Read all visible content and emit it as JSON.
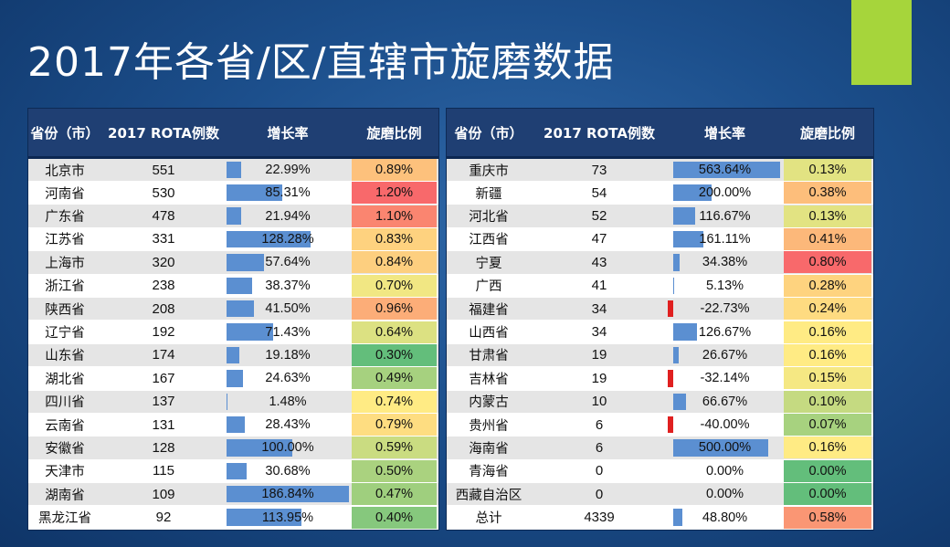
{
  "title": "2017年各省/区/直辖市旋磨数据",
  "columns": [
    "省份（市）",
    "2017 ROTA例数",
    "增长率",
    "旋磨比例"
  ],
  "colors": {
    "bar_positive": "#5b8fd1",
    "bar_negative": "#e02020",
    "ratio_low": "#63be7b",
    "ratio_mid": "#ffeb84",
    "ratio_high": "#f8696b"
  },
  "chart_data": {
    "type": "table",
    "title": "2017年各省/区/直辖市旋磨数据",
    "columns": [
      "省份（市）",
      "2017 ROTA例数",
      "增长率",
      "旋磨比例"
    ],
    "left_rows": [
      {
        "province": "北京市",
        "cases": "551",
        "growth": "22.99%",
        "growth_value": 22.99,
        "ratio": "0.89%",
        "ratio_value": 0.89
      },
      {
        "province": "河南省",
        "cases": "530",
        "growth": "85.31%",
        "growth_value": 85.31,
        "ratio": "1.20%",
        "ratio_value": 1.2
      },
      {
        "province": "广东省",
        "cases": "478",
        "growth": "21.94%",
        "growth_value": 21.94,
        "ratio": "1.10%",
        "ratio_value": 1.1
      },
      {
        "province": "江苏省",
        "cases": "331",
        "growth": "128.28%",
        "growth_value": 128.28,
        "ratio": "0.83%",
        "ratio_value": 0.83
      },
      {
        "province": "上海市",
        "cases": "320",
        "growth": "57.64%",
        "growth_value": 57.64,
        "ratio": "0.84%",
        "ratio_value": 0.84
      },
      {
        "province": "浙江省",
        "cases": "238",
        "growth": "38.37%",
        "growth_value": 38.37,
        "ratio": "0.70%",
        "ratio_value": 0.7
      },
      {
        "province": "陕西省",
        "cases": "208",
        "growth": "41.50%",
        "growth_value": 41.5,
        "ratio": "0.96%",
        "ratio_value": 0.96
      },
      {
        "province": "辽宁省",
        "cases": "192",
        "growth": "71.43%",
        "growth_value": 71.43,
        "ratio": "0.64%",
        "ratio_value": 0.64
      },
      {
        "province": "山东省",
        "cases": "174",
        "growth": "19.18%",
        "growth_value": 19.18,
        "ratio": "0.30%",
        "ratio_value": 0.3
      },
      {
        "province": "湖北省",
        "cases": "167",
        "growth": "24.63%",
        "growth_value": 24.63,
        "ratio": "0.49%",
        "ratio_value": 0.49
      },
      {
        "province": "四川省",
        "cases": "137",
        "growth": "1.48%",
        "growth_value": 1.48,
        "ratio": "0.74%",
        "ratio_value": 0.74
      },
      {
        "province": "云南省",
        "cases": "131",
        "growth": "28.43%",
        "growth_value": 28.43,
        "ratio": "0.79%",
        "ratio_value": 0.79
      },
      {
        "province": "安徽省",
        "cases": "128",
        "growth": "100.00%",
        "growth_value": 100.0,
        "ratio": "0.59%",
        "ratio_value": 0.59
      },
      {
        "province": "天津市",
        "cases": "115",
        "growth": "30.68%",
        "growth_value": 30.68,
        "ratio": "0.50%",
        "ratio_value": 0.5
      },
      {
        "province": "湖南省",
        "cases": "109",
        "growth": "186.84%",
        "growth_value": 186.84,
        "ratio": "0.47%",
        "ratio_value": 0.47
      },
      {
        "province": "黑龙江省",
        "cases": "92",
        "growth": "113.95%",
        "growth_value": 113.95,
        "ratio": "0.40%",
        "ratio_value": 0.4
      }
    ],
    "right_rows": [
      {
        "province": "重庆市",
        "cases": "73",
        "growth": "563.64%",
        "growth_value": 563.64,
        "ratio": "0.13%",
        "ratio_value": 0.13
      },
      {
        "province": "新疆",
        "cases": "54",
        "growth": "200.00%",
        "growth_value": 200.0,
        "ratio": "0.38%",
        "ratio_value": 0.38
      },
      {
        "province": "河北省",
        "cases": "52",
        "growth": "116.67%",
        "growth_value": 116.67,
        "ratio": "0.13%",
        "ratio_value": 0.13
      },
      {
        "province": "江西省",
        "cases": "47",
        "growth": "161.11%",
        "growth_value": 161.11,
        "ratio": "0.41%",
        "ratio_value": 0.41
      },
      {
        "province": "宁夏",
        "cases": "43",
        "growth": "34.38%",
        "growth_value": 34.38,
        "ratio": "0.80%",
        "ratio_value": 0.8
      },
      {
        "province": "广西",
        "cases": "41",
        "growth": "5.13%",
        "growth_value": 5.13,
        "ratio": "0.28%",
        "ratio_value": 0.28
      },
      {
        "province": "福建省",
        "cases": "34",
        "growth": "-22.73%",
        "growth_value": -22.73,
        "ratio": "0.24%",
        "ratio_value": 0.24
      },
      {
        "province": "山西省",
        "cases": "34",
        "growth": "126.67%",
        "growth_value": 126.67,
        "ratio": "0.16%",
        "ratio_value": 0.16
      },
      {
        "province": "甘肃省",
        "cases": "19",
        "growth": "26.67%",
        "growth_value": 26.67,
        "ratio": "0.16%",
        "ratio_value": 0.16
      },
      {
        "province": "吉林省",
        "cases": "19",
        "growth": "-32.14%",
        "growth_value": -32.14,
        "ratio": "0.15%",
        "ratio_value": 0.15
      },
      {
        "province": "内蒙古",
        "cases": "10",
        "growth": "66.67%",
        "growth_value": 66.67,
        "ratio": "0.10%",
        "ratio_value": 0.1
      },
      {
        "province": "贵州省",
        "cases": "6",
        "growth": "-40.00%",
        "growth_value": -40.0,
        "ratio": "0.07%",
        "ratio_value": 0.07
      },
      {
        "province": "海南省",
        "cases": "6",
        "growth": "500.00%",
        "growth_value": 500.0,
        "ratio": "0.16%",
        "ratio_value": 0.16
      },
      {
        "province": "青海省",
        "cases": "0",
        "growth": "0.00%",
        "growth_value": 0.0,
        "ratio": "0.00%",
        "ratio_value": 0.0
      },
      {
        "province": "西藏自治区",
        "cases": "0",
        "growth": "0.00%",
        "growth_value": 0.0,
        "ratio": "0.00%",
        "ratio_value": 0.0
      },
      {
        "province": "总计",
        "cases": "4339",
        "growth": "48.80%",
        "growth_value": 48.8,
        "ratio": "0.58%",
        "ratio_value": 0.58
      }
    ]
  }
}
